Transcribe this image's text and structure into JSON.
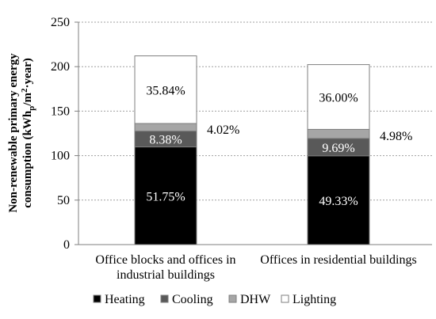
{
  "chart_data": {
    "type": "bar",
    "stacked": true,
    "ylabel_line1": "Non-renewable primary energy",
    "ylabel_line2_pre": "consumption (kWh",
    "ylabel_line2_sub": "p",
    "ylabel_line2_mid": "/m",
    "ylabel_line2_sup": "2",
    "ylabel_line2_post": "·year)",
    "ylim": [
      0,
      250
    ],
    "yticks": [
      0,
      50,
      100,
      150,
      200,
      250
    ],
    "ytick_labels": [
      "0",
      "50",
      "100",
      "150",
      "200",
      "250"
    ],
    "grid": "horizontal dotted",
    "legend_position": "bottom",
    "categories": [
      [
        "Office blocks and offices in",
        "industrial buildings"
      ],
      [
        "Offices in residential buildings"
      ]
    ],
    "series": [
      {
        "name": "Heating",
        "color": "#000000",
        "values": [
          109.8,
          99.8
        ],
        "labels": [
          "51.75%",
          "49.33%"
        ],
        "label_color": "#ffffff"
      },
      {
        "name": "Cooling",
        "color": "#595959",
        "values": [
          17.8,
          19.6
        ],
        "labels": [
          "8.38%",
          "9.69%"
        ],
        "label_color": "#ffffff"
      },
      {
        "name": "DHW",
        "color": "#a6a6a6",
        "values": [
          8.5,
          10.1
        ],
        "labels": [
          "4.02%",
          "4.98%"
        ],
        "label_color": "#000000",
        "label_outside": true
      },
      {
        "name": "Lighting",
        "color": "#ffffff",
        "values": [
          76.0,
          72.8
        ],
        "labels": [
          "35.84%",
          "36.00%"
        ],
        "label_color": "#000000"
      }
    ]
  }
}
